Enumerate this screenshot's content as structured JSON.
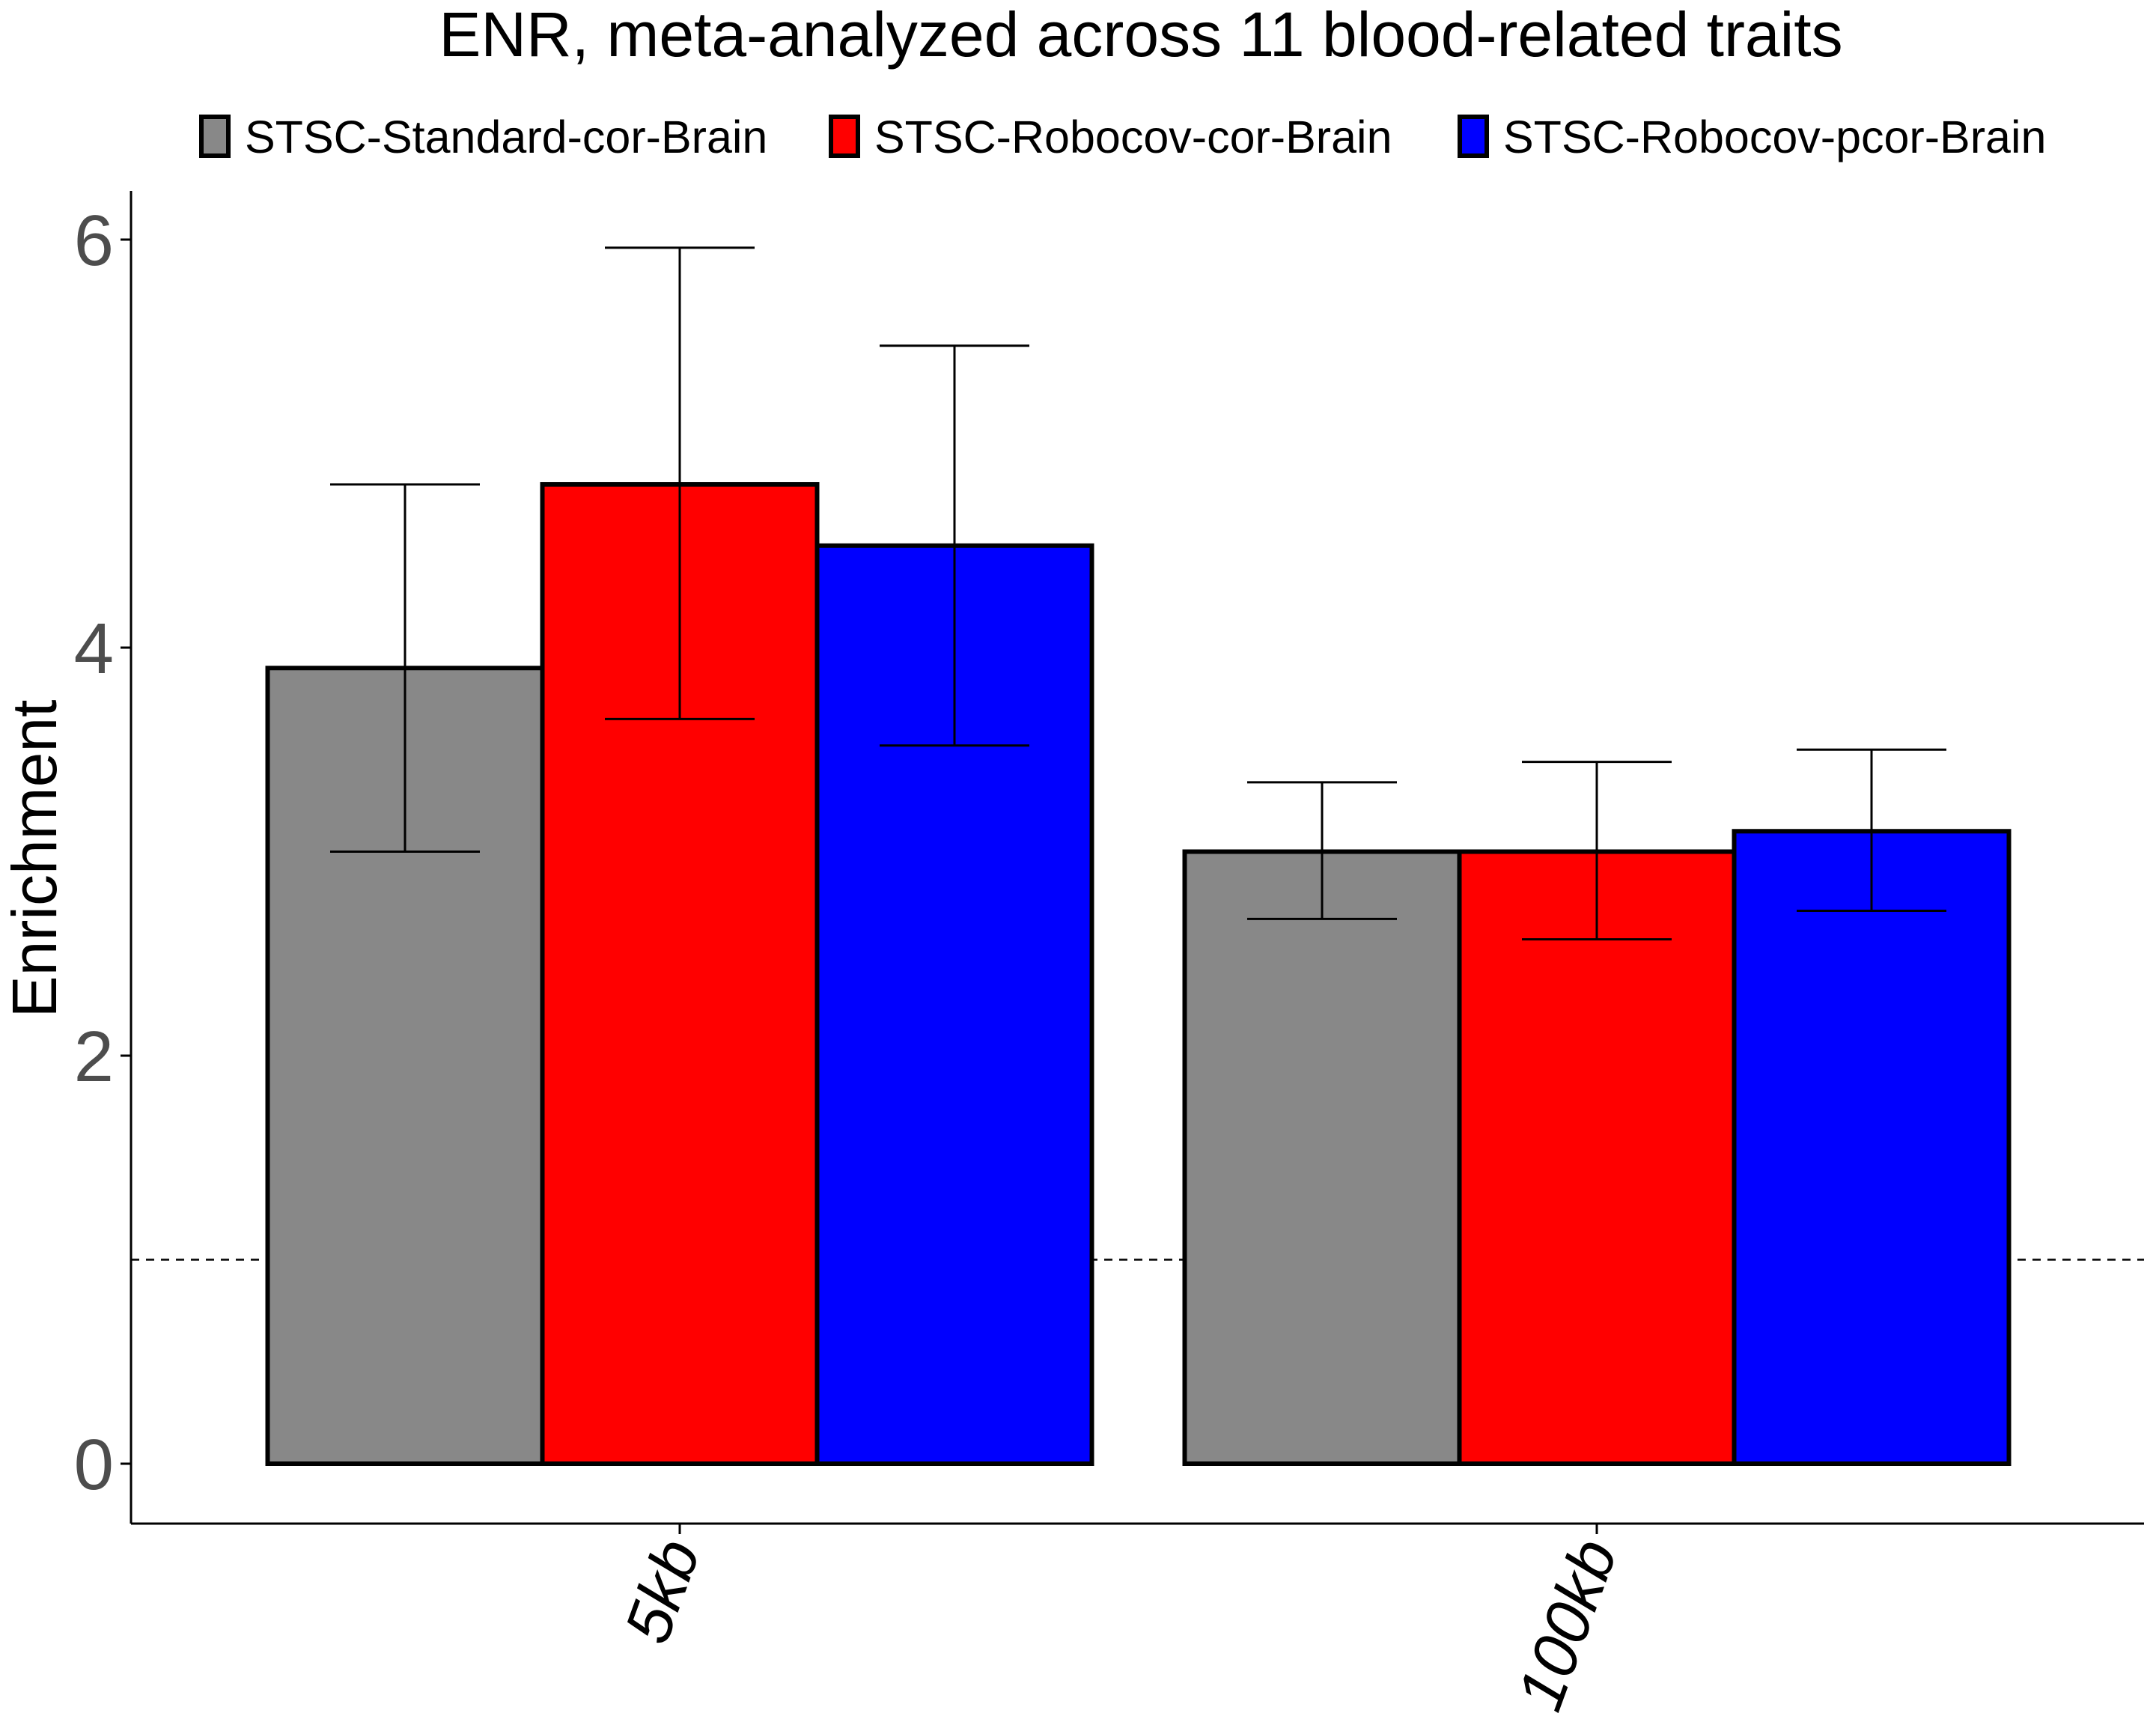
{
  "chart_data": {
    "type": "bar",
    "title": "ENR, meta-analyzed across 11 blood-related traits",
    "ylabel": "Enrichment",
    "xlabel": "",
    "categories": [
      "5kb",
      "100kb"
    ],
    "ylim": [
      -0.3,
      6.25
    ],
    "yticks": [
      0,
      2,
      4,
      6
    ],
    "reference_line": 1,
    "legend_position": "top",
    "grid": false,
    "series": [
      {
        "name": "STSC-Standard-cor-Brain",
        "color": "#888888",
        "values": [
          3.9,
          3.0
        ],
        "err_low": [
          3.0,
          2.67
        ],
        "err_high": [
          4.8,
          3.34
        ]
      },
      {
        "name": "STSC-Robocov-cor-Brain",
        "color": "#ff0000",
        "values": [
          4.8,
          3.0
        ],
        "err_low": [
          3.65,
          2.57
        ],
        "err_high": [
          5.96,
          3.44
        ]
      },
      {
        "name": "STSC-Robocov-pcor-Brain",
        "color": "#0000ff",
        "values": [
          4.5,
          3.1
        ],
        "err_low": [
          3.52,
          2.71
        ],
        "err_high": [
          5.48,
          3.5
        ]
      }
    ]
  }
}
